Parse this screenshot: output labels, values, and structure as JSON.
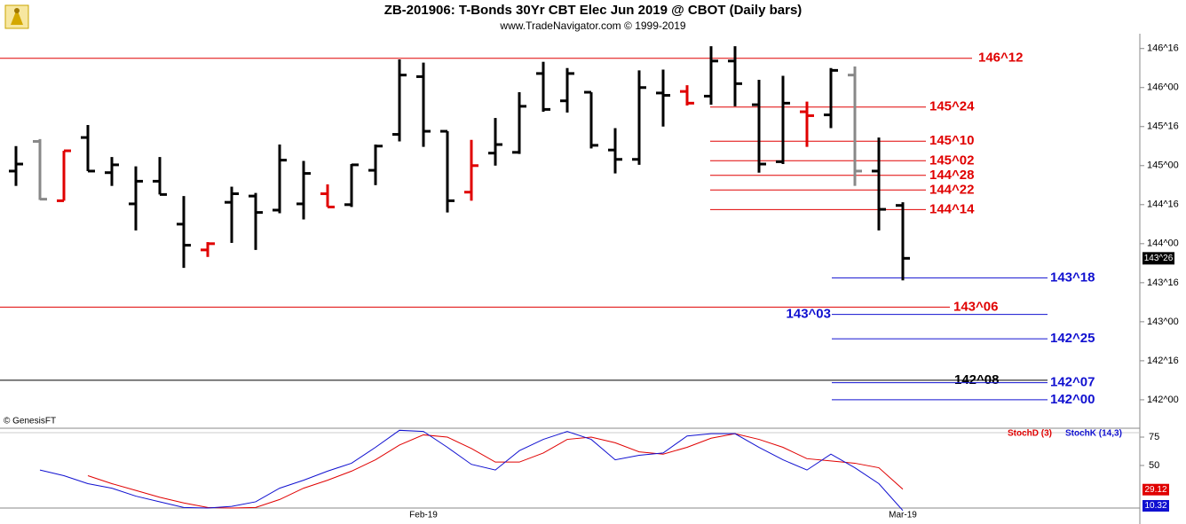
{
  "chart_data": [
    {
      "type": "ohlc",
      "title": "ZB-201906:  T-Bonds 30Yr CBT Elec Jun 2019 @ CBOT  (Daily bars)",
      "subtitle": "www.TradeNavigator.com © 1999-2019",
      "source": "© GenesisFT",
      "categories": [
        null,
        null,
        null,
        null,
        null,
        null,
        null,
        null,
        null,
        null,
        null,
        null,
        null,
        null,
        null,
        null,
        null,
        "Feb-19",
        null,
        null,
        null,
        null,
        null,
        null,
        null,
        null,
        null,
        null,
        null,
        null,
        null,
        null,
        null,
        null,
        null,
        null,
        null,
        "Mar-19"
      ],
      "open": [
        144.93,
        145.31,
        144.55,
        145.36,
        144.91,
        144.51,
        144.8,
        144.25,
        143.92,
        144.53,
        144.61,
        144.43,
        144.51,
        144.64,
        144.5,
        144.94,
        145.4,
        146.14,
        145.44,
        144.66,
        145.16,
        145.17,
        146.18,
        145.83,
        145.94,
        145.2,
        145.08,
        145.93,
        145.95,
        145.89,
        146.34,
        145.78,
        145.05,
        145.69,
        145.65,
        146.16,
        144.93,
        144.49
      ],
      "high": [
        145.25,
        145.34,
        145.19,
        145.52,
        145.11,
        144.99,
        145.11,
        144.61,
        144.02,
        144.73,
        144.65,
        145.27,
        145.06,
        144.76,
        145.02,
        145.27,
        146.36,
        146.32,
        145.44,
        145.33,
        145.61,
        145.94,
        146.33,
        146.25,
        145.94,
        145.48,
        146.22,
        146.23,
        146.03,
        146.53,
        146.53,
        146.1,
        146.15,
        145.82,
        146.25,
        146.27,
        145.36,
        144.53
      ],
      "low": [
        144.74,
        144.56,
        144.55,
        144.93,
        144.74,
        144.17,
        144.63,
        143.69,
        143.83,
        144.01,
        143.92,
        144.39,
        144.31,
        144.47,
        144.47,
        144.75,
        145.31,
        145.24,
        144.4,
        144.55,
        145.0,
        145.15,
        145.69,
        145.68,
        145.22,
        144.9,
        145.01,
        145.5,
        145.77,
        145.78,
        145.76,
        144.91,
        145.02,
        145.24,
        145.48,
        144.74,
        144.17,
        143.53
      ],
      "close": [
        145.02,
        144.57,
        145.19,
        144.93,
        145.01,
        144.8,
        144.63,
        143.98,
        144.0,
        144.64,
        144.4,
        145.07,
        144.9,
        144.47,
        145.01,
        145.25,
        146.16,
        145.44,
        144.55,
        145.0,
        145.27,
        145.76,
        145.72,
        146.18,
        145.26,
        145.08,
        146.0,
        145.9,
        145.8,
        146.34,
        146.05,
        145.02,
        145.8,
        145.64,
        146.22,
        144.93,
        144.44,
        143.8125
      ],
      "colors": [
        "#000",
        "#888",
        "#e00000",
        "#000",
        "#000",
        "#000",
        "#000",
        "#000",
        "#e00000",
        "#000",
        "#000",
        "#000",
        "#000",
        "#e00000",
        "#000",
        "#000",
        "#000",
        "#000",
        "#000",
        "#e00000",
        "#000",
        "#000",
        "#000",
        "#000",
        "#000",
        "#000",
        "#000",
        "#000",
        "#e00000",
        "#000",
        "#000",
        "#000",
        "#000",
        "#e00000",
        "#000",
        "#888",
        "#000",
        "#000"
      ],
      "ylim": [
        141.84,
        146.69
      ],
      "yticks": [
        {
          "value": 146.5,
          "label": "146^16"
        },
        {
          "value": 146,
          "label": "146^00"
        },
        {
          "value": 145.5,
          "label": "145^16"
        },
        {
          "value": 145,
          "label": "145^00"
        },
        {
          "value": 144.5,
          "label": "144^16"
        },
        {
          "value": 144,
          "label": "144^00"
        },
        {
          "value": 143.5,
          "label": "143^16"
        },
        {
          "value": 143,
          "label": "143^00"
        },
        {
          "value": 142.5,
          "label": "142^16"
        },
        {
          "value": 142,
          "label": "142^00"
        }
      ],
      "last_label": {
        "value": 143.8125,
        "label": "143^26"
      },
      "levels": [
        {
          "value": 146.375,
          "label": "146^12",
          "color": "#e00000"
        },
        {
          "value": 145.75,
          "label": "145^24",
          "color": "#e00000"
        },
        {
          "value": 145.3125,
          "label": "145^10",
          "color": "#e00000"
        },
        {
          "value": 145.0625,
          "label": "145^02",
          "color": "#e00000"
        },
        {
          "value": 144.875,
          "label": "144^28",
          "color": "#e00000"
        },
        {
          "value": 144.6875,
          "label": "144^22",
          "color": "#e00000"
        },
        {
          "value": 144.4375,
          "label": "144^14",
          "color": "#e00000"
        },
        {
          "value": 143.5625,
          "label": "143^18",
          "color": "#1010d0"
        },
        {
          "value": 143.1875,
          "label": "143^06",
          "color": "#e00000"
        },
        {
          "value": 143.09375,
          "label": "143^03",
          "color": "#1010d0"
        },
        {
          "value": 142.78125,
          "label": "142^25",
          "color": "#1010d0"
        },
        {
          "value": 142.25,
          "label": "142^08",
          "color": "#000000"
        },
        {
          "value": 142.21875,
          "label": "142^07",
          "color": "#1010d0"
        },
        {
          "value": 142,
          "label": "142^00",
          "color": "#1010d0"
        }
      ]
    },
    {
      "type": "line",
      "series": [
        {
          "name": "StochD (3)",
          "color": "#e00000",
          "values": [
            null,
            null,
            null,
            41,
            34,
            28,
            22,
            17,
            13,
            12.5,
            13,
            20,
            30,
            37,
            45,
            55,
            68,
            77,
            75,
            65,
            53,
            53,
            61,
            73,
            75,
            70,
            62,
            60,
            66,
            74,
            78,
            73,
            66,
            56,
            54,
            52,
            48,
            29.12
          ]
        },
        {
          "name": "StochK (14,3)",
          "color": "#1010d0",
          "values": [
            null,
            46,
            41,
            34,
            30,
            23,
            18,
            13,
            12.5,
            14,
            18,
            30,
            37,
            45,
            52,
            66,
            81,
            80,
            66,
            51,
            46,
            63,
            73,
            80,
            73,
            55,
            59,
            61,
            76,
            78,
            78,
            66,
            55,
            46,
            60,
            48,
            34,
            10.32
          ]
        }
      ],
      "ylim": [
        12.5,
        81.25
      ],
      "yticks": [
        75,
        50
      ]
    }
  ]
}
